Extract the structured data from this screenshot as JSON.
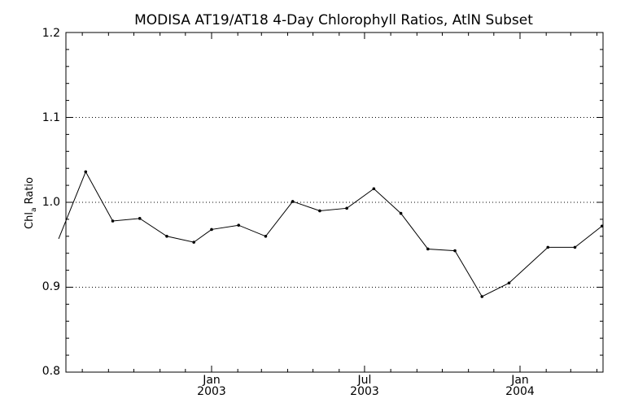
{
  "chart_data": {
    "type": "line",
    "title": "MODISA AT19/AT18 4-Day Chlorophyll Ratios, AtlN Subset",
    "ylabel_main": "Chl",
    "ylabel_sub": "a",
    "ylabel_rest": " Ratio",
    "ylim": [
      0.8,
      1.2
    ],
    "y_ticks": [
      "0.8",
      "0.9",
      "1.0",
      "1.1",
      "1.2"
    ],
    "grid": "horizontal dotted at 0.9, 1.0, 1.1",
    "x_tick_labels": [
      {
        "month": "Jan",
        "year": "2003"
      },
      {
        "month": "Jul",
        "year": "2003"
      },
      {
        "month": "Jan",
        "year": "2004"
      }
    ],
    "x": [
      "2002-07-04",
      "2002-08-05",
      "2002-09-06",
      "2002-10-08",
      "2002-11-09",
      "2002-12-11",
      "2003-01-01",
      "2003-02-02",
      "2003-03-06",
      "2003-04-07",
      "2003-05-09",
      "2003-06-10",
      "2003-07-12",
      "2003-08-13",
      "2003-09-14",
      "2003-10-16",
      "2003-11-17",
      "2003-12-19",
      "2004-02-03",
      "2004-03-06",
      "2004-04-07"
    ],
    "values": [
      0.957,
      1.036,
      0.978,
      0.981,
      0.96,
      0.953,
      0.968,
      0.973,
      0.96,
      1.001,
      0.99,
      0.993,
      1.016,
      0.987,
      0.945,
      0.943,
      0.889,
      0.905,
      0.947,
      0.947,
      0.972
    ]
  }
}
